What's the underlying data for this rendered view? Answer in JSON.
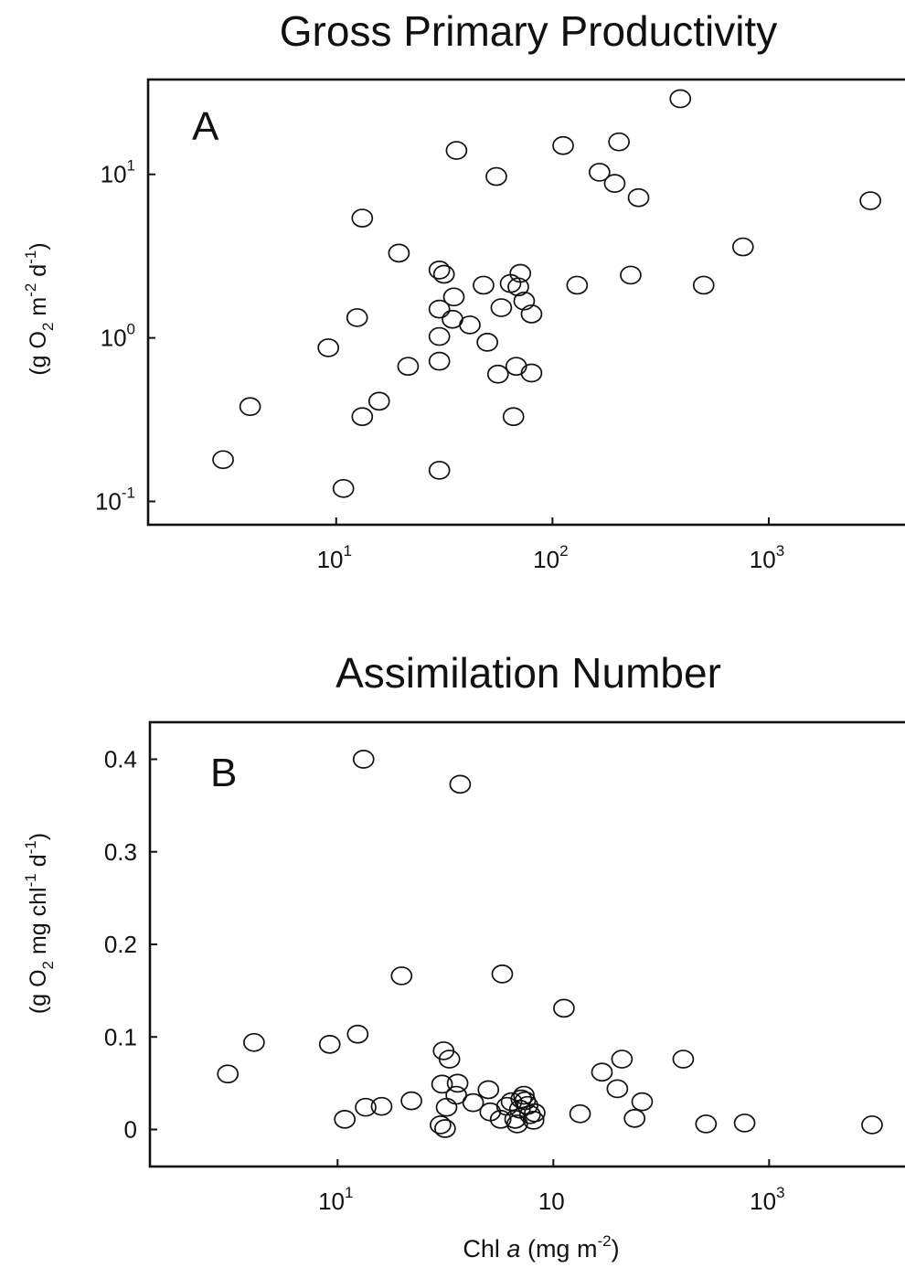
{
  "chart_data": [
    {
      "type": "scatter",
      "title": "Gross Primary Productivity",
      "panel_label": "A",
      "x_scale": "log",
      "y_scale": "log",
      "xlim": [
        1.35,
        4700
      ],
      "ylim": [
        0.072,
        38
      ],
      "x_tick_labels": [
        {
          "value": 10,
          "base": "10",
          "exp": "1"
        },
        {
          "value": 100,
          "base": "10",
          "exp": "2"
        },
        {
          "value": 1000,
          "base": "10",
          "exp": "3"
        }
      ],
      "y_tick_labels": [
        {
          "value": 0.1,
          "base": "10",
          "exp": "-1"
        },
        {
          "value": 1,
          "base": "10",
          "exp": "0"
        },
        {
          "value": 10,
          "base": "10",
          "exp": "1"
        }
      ],
      "ylabel": {
        "open": "(g O",
        "sub1": "2",
        "mid": " m",
        "sup1": "-2",
        "mid2": " d",
        "sup2": "-1",
        "close": ")"
      },
      "grid": false,
      "points": [
        {
          "x": 3.0,
          "y": 0.18
        },
        {
          "x": 4.0,
          "y": 0.38
        },
        {
          "x": 9.2,
          "y": 0.87
        },
        {
          "x": 10.8,
          "y": 0.12
        },
        {
          "x": 12.5,
          "y": 1.33
        },
        {
          "x": 13.2,
          "y": 0.33
        },
        {
          "x": 13.2,
          "y": 5.4
        },
        {
          "x": 15.8,
          "y": 0.41
        },
        {
          "x": 19.5,
          "y": 3.3
        },
        {
          "x": 21.5,
          "y": 0.67
        },
        {
          "x": 30.0,
          "y": 0.155
        },
        {
          "x": 30.0,
          "y": 0.72
        },
        {
          "x": 30.0,
          "y": 1.02
        },
        {
          "x": 30.0,
          "y": 1.5
        },
        {
          "x": 30.0,
          "y": 2.6
        },
        {
          "x": 31.5,
          "y": 2.45
        },
        {
          "x": 34.5,
          "y": 1.3
        },
        {
          "x": 35.0,
          "y": 1.78
        },
        {
          "x": 36.0,
          "y": 14.0
        },
        {
          "x": 41.5,
          "y": 1.2
        },
        {
          "x": 48.0,
          "y": 2.1
        },
        {
          "x": 50.0,
          "y": 0.94
        },
        {
          "x": 55.0,
          "y": 9.7
        },
        {
          "x": 56.0,
          "y": 0.6
        },
        {
          "x": 58.0,
          "y": 1.53
        },
        {
          "x": 64.0,
          "y": 2.15
        },
        {
          "x": 66.0,
          "y": 0.33
        },
        {
          "x": 68.0,
          "y": 0.67
        },
        {
          "x": 69.5,
          "y": 2.05
        },
        {
          "x": 71.0,
          "y": 2.48
        },
        {
          "x": 74.0,
          "y": 1.68
        },
        {
          "x": 80.0,
          "y": 0.61
        },
        {
          "x": 80.0,
          "y": 1.4
        },
        {
          "x": 112.0,
          "y": 15.0
        },
        {
          "x": 130.0,
          "y": 2.1
        },
        {
          "x": 165.0,
          "y": 10.3
        },
        {
          "x": 194.0,
          "y": 8.8
        },
        {
          "x": 203.0,
          "y": 15.8
        },
        {
          "x": 230.0,
          "y": 2.42
        },
        {
          "x": 250.0,
          "y": 7.2
        },
        {
          "x": 390.0,
          "y": 29.0
        },
        {
          "x": 500.0,
          "y": 2.1
        },
        {
          "x": 760.0,
          "y": 3.6
        },
        {
          "x": 2950.0,
          "y": 6.9
        }
      ]
    },
    {
      "type": "scatter",
      "title": "Assimilation Number",
      "panel_label": "B",
      "x_scale": "log",
      "y_scale": "linear",
      "xlim": [
        1.35,
        4700
      ],
      "ylim": [
        -0.04,
        0.44
      ],
      "x_tick_labels": [
        {
          "value": 10,
          "base": "10",
          "exp": "1"
        },
        {
          "value": 100,
          "base": "10",
          "exp": ""
        },
        {
          "value": 1000,
          "base": "10",
          "exp": "3"
        }
      ],
      "y_tick_labels": [
        {
          "value": 0,
          "text": "0"
        },
        {
          "value": 0.1,
          "text": "0.1"
        },
        {
          "value": 0.2,
          "text": "0.2"
        },
        {
          "value": 0.3,
          "text": "0.3"
        },
        {
          "value": 0.4,
          "text": "0.4"
        }
      ],
      "ylabel": {
        "open": "(g O",
        "sub1": "2",
        "mid": " mg chl",
        "sup1": "-1",
        "mid2": " d",
        "sup2": "-1",
        "close": ")"
      },
      "xlabel": {
        "pre": "Chl ",
        "italic": "a",
        "post": " (mg m",
        "sup": "-2",
        "close": ")"
      },
      "grid": false,
      "points": [
        {
          "x": 3.1,
          "y": 0.06
        },
        {
          "x": 4.1,
          "y": 0.094
        },
        {
          "x": 9.2,
          "y": 0.092
        },
        {
          "x": 10.8,
          "y": 0.011
        },
        {
          "x": 12.4,
          "y": 0.103
        },
        {
          "x": 13.2,
          "y": 0.4
        },
        {
          "x": 13.5,
          "y": 0.024
        },
        {
          "x": 16.0,
          "y": 0.025
        },
        {
          "x": 19.8,
          "y": 0.166
        },
        {
          "x": 22.0,
          "y": 0.031
        },
        {
          "x": 30.0,
          "y": 0.005
        },
        {
          "x": 30.5,
          "y": 0.049
        },
        {
          "x": 31.0,
          "y": 0.085
        },
        {
          "x": 31.5,
          "y": 0.001
        },
        {
          "x": 32.0,
          "y": 0.024
        },
        {
          "x": 33.0,
          "y": 0.076
        },
        {
          "x": 35.5,
          "y": 0.037
        },
        {
          "x": 36.0,
          "y": 0.05
        },
        {
          "x": 37.0,
          "y": 0.373
        },
        {
          "x": 42.5,
          "y": 0.029
        },
        {
          "x": 50.0,
          "y": 0.043
        },
        {
          "x": 51.0,
          "y": 0.019
        },
        {
          "x": 57.0,
          "y": 0.011
        },
        {
          "x": 58.0,
          "y": 0.168
        },
        {
          "x": 61.0,
          "y": 0.025
        },
        {
          "x": 64.0,
          "y": 0.03
        },
        {
          "x": 66.5,
          "y": 0.011
        },
        {
          "x": 68.0,
          "y": 0.006
        },
        {
          "x": 70.0,
          "y": 0.022
        },
        {
          "x": 71.0,
          "y": 0.033
        },
        {
          "x": 73.0,
          "y": 0.037
        },
        {
          "x": 74.0,
          "y": 0.031
        },
        {
          "x": 76.0,
          "y": 0.026
        },
        {
          "x": 78.0,
          "y": 0.016
        },
        {
          "x": 81.0,
          "y": 0.01
        },
        {
          "x": 82.0,
          "y": 0.018
        },
        {
          "x": 112.0,
          "y": 0.131
        },
        {
          "x": 133.0,
          "y": 0.017
        },
        {
          "x": 168.0,
          "y": 0.062
        },
        {
          "x": 198.0,
          "y": 0.044
        },
        {
          "x": 208.0,
          "y": 0.076
        },
        {
          "x": 238.0,
          "y": 0.012
        },
        {
          "x": 258.0,
          "y": 0.03
        },
        {
          "x": 400.0,
          "y": 0.076
        },
        {
          "x": 510.0,
          "y": 0.006
        },
        {
          "x": 770.0,
          "y": 0.007
        },
        {
          "x": 3000.0,
          "y": 0.005
        }
      ]
    }
  ]
}
